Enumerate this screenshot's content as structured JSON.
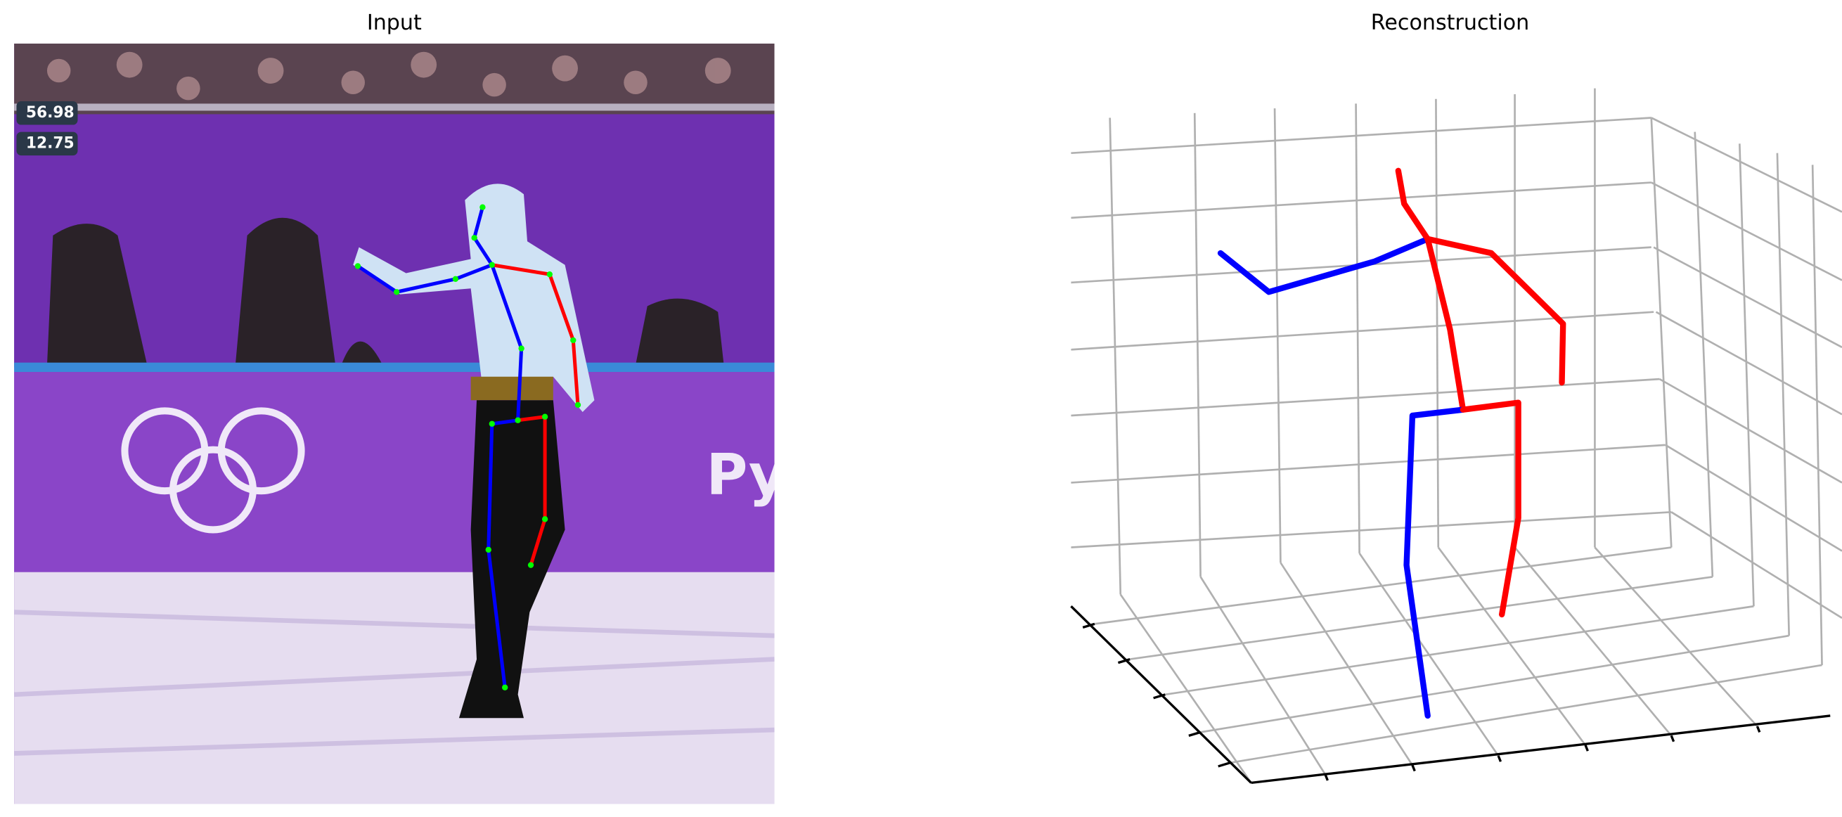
{
  "panels": [
    {
      "title": "Input"
    },
    {
      "title": "Reconstruction"
    }
  ],
  "scoreboard": [
    "56.98",
    "12.75"
  ]
}
